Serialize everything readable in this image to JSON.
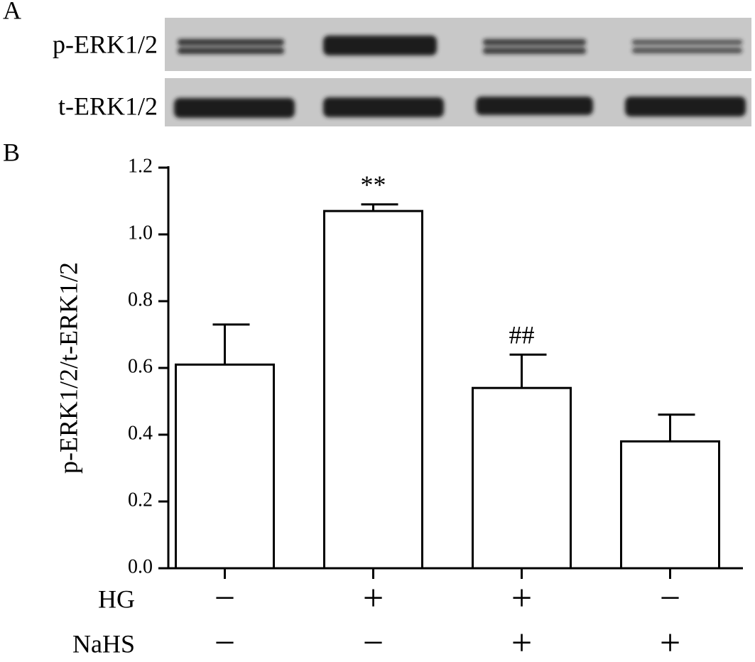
{
  "panel_a": {
    "label": "A",
    "rows": [
      "p-ERK1/2",
      "t-ERK1/2"
    ]
  },
  "chart_data": {
    "type": "bar",
    "panel_label": "B",
    "y_label": "p-ERK1/2/t-ERK1/2",
    "values": [
      0.61,
      1.07,
      0.54,
      0.38
    ],
    "errors": [
      0.12,
      0.02,
      0.1,
      0.08
    ],
    "annotations": [
      null,
      "**",
      "##",
      null
    ],
    "conditions": [
      {
        "name": "HG",
        "values": [
          "−",
          "+",
          "+",
          "−"
        ]
      },
      {
        "name": "NaHS",
        "values": [
          "−",
          "−",
          "+",
          "+"
        ]
      }
    ],
    "color": "#ffffff",
    "ylim": [
      0,
      1.2
    ],
    "yticks": [
      {
        "value": 0,
        "label": "0.0"
      },
      0.2,
      0.4,
      0.6,
      0.8,
      {
        "value": 1,
        "label": "1.0"
      },
      1.2
    ]
  }
}
